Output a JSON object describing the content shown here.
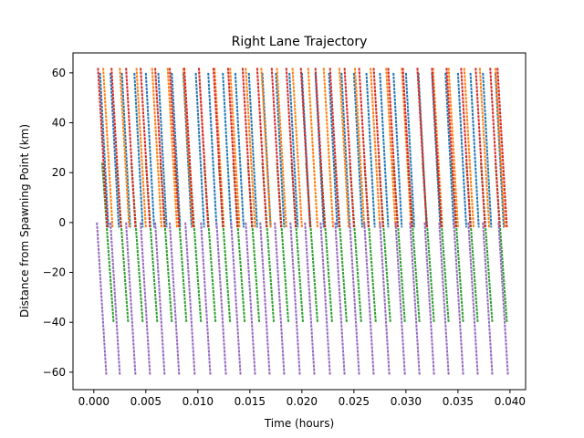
{
  "chart_data": {
    "type": "line",
    "title": "Right Lane Trajectory",
    "xlabel": "Time (hours)",
    "ylabel": "Distance from Spawning Point (km)",
    "xlim": [
      -0.002,
      0.0415
    ],
    "ylim": [
      -67,
      68
    ],
    "xticks": [
      0.0,
      0.005,
      0.01,
      0.015,
      0.02,
      0.025,
      0.03,
      0.035,
      0.04
    ],
    "xtick_labels": [
      "0.000",
      "0.005",
      "0.010",
      "0.015",
      "0.020",
      "0.025",
      "0.030",
      "0.035",
      "0.040"
    ],
    "yticks": [
      -60,
      -40,
      -20,
      0,
      20,
      40,
      60
    ],
    "ytick_labels": [
      "−60",
      "−40",
      "−20",
      "0",
      "20",
      "40",
      "60"
    ],
    "grid": false,
    "legend": "none",
    "series": [
      {
        "color": "#1f77b4",
        "y_start": 60,
        "y_end": -2,
        "segments": [
          [
            0.0006,
            0.0014
          ],
          [
            0.0016,
            0.0024
          ],
          [
            0.0027,
            0.0035
          ],
          [
            0.0039,
            0.0047
          ],
          [
            0.005,
            0.0058
          ],
          [
            0.0062,
            0.007
          ],
          [
            0.0075,
            0.0083
          ],
          [
            0.0086,
            0.0094
          ],
          [
            0.0098,
            0.0106
          ],
          [
            0.011,
            0.0118
          ],
          [
            0.0124,
            0.0132
          ],
          [
            0.0136,
            0.0144
          ],
          [
            0.0149,
            0.0157
          ],
          [
            0.0162,
            0.017
          ],
          [
            0.0175,
            0.0183
          ],
          [
            0.0188,
            0.0196
          ],
          [
            0.02,
            0.0208
          ],
          [
            0.0213,
            0.0221
          ],
          [
            0.0226,
            0.0234
          ],
          [
            0.0238,
            0.0246
          ],
          [
            0.025,
            0.0258
          ],
          [
            0.0262,
            0.027
          ],
          [
            0.0275,
            0.0283
          ],
          [
            0.0288,
            0.0296
          ],
          [
            0.03,
            0.0308
          ],
          [
            0.0312,
            0.032
          ],
          [
            0.0325,
            0.0333
          ],
          [
            0.0338,
            0.0346
          ],
          [
            0.035,
            0.0358
          ],
          [
            0.0362,
            0.037
          ],
          [
            0.0374,
            0.0382
          ],
          [
            0.0386,
            0.0394
          ]
        ]
      },
      {
        "color": "#ff7f0e",
        "y_start": 62,
        "y_end": -2,
        "segments": [
          [
            0.0009,
            0.0018
          ],
          [
            0.0025,
            0.0034
          ],
          [
            0.0041,
            0.005
          ],
          [
            0.0056,
            0.0065
          ],
          [
            0.0071,
            0.008
          ],
          [
            0.0086,
            0.0095
          ],
          [
            0.0101,
            0.011
          ],
          [
            0.0116,
            0.0125
          ],
          [
            0.0131,
            0.014
          ],
          [
            0.0146,
            0.0155
          ],
          [
            0.0161,
            0.017
          ],
          [
            0.0176,
            0.0185
          ],
          [
            0.0191,
            0.02
          ],
          [
            0.0206,
            0.0215
          ],
          [
            0.0221,
            0.023
          ],
          [
            0.0236,
            0.0245
          ],
          [
            0.0251,
            0.026
          ],
          [
            0.0266,
            0.0275
          ],
          [
            0.0281,
            0.029
          ],
          [
            0.0296,
            0.0305
          ],
          [
            0.0311,
            0.032
          ],
          [
            0.0326,
            0.0335
          ],
          [
            0.0341,
            0.035
          ],
          [
            0.0356,
            0.0365
          ],
          [
            0.0371,
            0.038
          ],
          [
            0.0386,
            0.0395
          ]
        ]
      },
      {
        "color": "#2ca02c",
        "y_start": 24,
        "y_end": -40,
        "segments": [
          [
            0.0008,
            0.0019
          ],
          [
            0.0022,
            0.0033
          ],
          [
            0.0036,
            0.0047
          ],
          [
            0.005,
            0.0061
          ],
          [
            0.0064,
            0.0075
          ],
          [
            0.0078,
            0.0089
          ],
          [
            0.0092,
            0.0103
          ],
          [
            0.0106,
            0.0117
          ],
          [
            0.012,
            0.0131
          ],
          [
            0.0134,
            0.0145
          ],
          [
            0.0148,
            0.0159
          ],
          [
            0.0162,
            0.0173
          ],
          [
            0.0176,
            0.0187
          ],
          [
            0.019,
            0.0201
          ],
          [
            0.0204,
            0.0215
          ],
          [
            0.0218,
            0.0229
          ],
          [
            0.0232,
            0.0243
          ],
          [
            0.0246,
            0.0257
          ],
          [
            0.026,
            0.0271
          ],
          [
            0.0274,
            0.0285
          ],
          [
            0.0288,
            0.0299
          ],
          [
            0.0302,
            0.0313
          ],
          [
            0.0316,
            0.0327
          ],
          [
            0.033,
            0.0341
          ],
          [
            0.0344,
            0.0355
          ],
          [
            0.0358,
            0.0369
          ],
          [
            0.0372,
            0.0383
          ],
          [
            0.0386,
            0.0397
          ]
        ]
      },
      {
        "color": "#d62728",
        "y_start": 62,
        "y_end": -2,
        "segments": [
          [
            0.0004,
            0.0013
          ],
          [
            0.0017,
            0.0026
          ],
          [
            0.0031,
            0.004
          ],
          [
            0.0045,
            0.0054
          ],
          [
            0.0059,
            0.0068
          ],
          [
            0.0073,
            0.0082
          ],
          [
            0.0087,
            0.0096
          ],
          [
            0.0101,
            0.011
          ],
          [
            0.0115,
            0.0124
          ],
          [
            0.0129,
            0.0138
          ],
          [
            0.0143,
            0.0152
          ],
          [
            0.0157,
            0.0166
          ],
          [
            0.0171,
            0.018
          ],
          [
            0.0185,
            0.0194
          ],
          [
            0.0199,
            0.0208
          ],
          [
            0.0213,
            0.0222
          ],
          [
            0.0227,
            0.0236
          ],
          [
            0.0241,
            0.025
          ],
          [
            0.0255,
            0.0264
          ],
          [
            0.0269,
            0.0278
          ],
          [
            0.0283,
            0.0292
          ],
          [
            0.0297,
            0.0306
          ],
          [
            0.0311,
            0.032
          ],
          [
            0.0325,
            0.0334
          ],
          [
            0.0339,
            0.0348
          ],
          [
            0.0353,
            0.0362
          ],
          [
            0.0367,
            0.0376
          ],
          [
            0.0381,
            0.039
          ],
          [
            0.0388,
            0.0397
          ]
        ]
      },
      {
        "color": "#9467bd",
        "y_start": 0,
        "y_end": -61,
        "segments": [
          [
            0.0003,
            0.0012
          ],
          [
            0.0016,
            0.0025
          ],
          [
            0.0031,
            0.004
          ],
          [
            0.0045,
            0.0054
          ],
          [
            0.0059,
            0.0068
          ],
          [
            0.0073,
            0.0082
          ],
          [
            0.0088,
            0.0097
          ],
          [
            0.0103,
            0.0112
          ],
          [
            0.0118,
            0.0127
          ],
          [
            0.0132,
            0.0141
          ],
          [
            0.0146,
            0.0155
          ],
          [
            0.016,
            0.0169
          ],
          [
            0.0174,
            0.0183
          ],
          [
            0.0189,
            0.0198
          ],
          [
            0.0203,
            0.0212
          ],
          [
            0.0218,
            0.0227
          ],
          [
            0.0232,
            0.0241
          ],
          [
            0.0246,
            0.0255
          ],
          [
            0.026,
            0.0269
          ],
          [
            0.0275,
            0.0284
          ],
          [
            0.029,
            0.0299
          ],
          [
            0.0304,
            0.0313
          ],
          [
            0.0318,
            0.0327
          ],
          [
            0.0332,
            0.0341
          ],
          [
            0.0346,
            0.0355
          ],
          [
            0.036,
            0.0369
          ],
          [
            0.0374,
            0.0383
          ],
          [
            0.0389,
            0.0398
          ]
        ]
      }
    ]
  }
}
